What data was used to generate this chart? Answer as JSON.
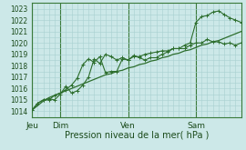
{
  "xlabel": "Pression niveau de la mer( hPa )",
  "bg_color": "#cce8e8",
  "grid_color": "#a8d0d0",
  "line_color": "#2d6e2d",
  "ylim": [
    1013.5,
    1023.5
  ],
  "yticks": [
    1014,
    1015,
    1016,
    1017,
    1018,
    1019,
    1020,
    1021,
    1022,
    1023
  ],
  "day_labels": [
    "Jeu",
    "Dim",
    "Ven",
    "Sam"
  ],
  "day_positions": [
    0,
    30,
    102,
    174
  ],
  "total_hours": 222,
  "series1_x": [
    0,
    6,
    12,
    18,
    24,
    30,
    36,
    42,
    48,
    54,
    60,
    66,
    72,
    78,
    84,
    90,
    96,
    102,
    108,
    114,
    120,
    126,
    132,
    138,
    144,
    150,
    156,
    162,
    168,
    174,
    180,
    186,
    192,
    198,
    204,
    210,
    216,
    222
  ],
  "series1_y": [
    1014.1,
    1014.5,
    1014.9,
    1015.2,
    1015.4,
    1015.6,
    1015.8,
    1016.0,
    1016.2,
    1016.4,
    1016.6,
    1016.8,
    1017.0,
    1017.2,
    1017.3,
    1017.5,
    1017.6,
    1017.8,
    1017.9,
    1018.1,
    1018.2,
    1018.4,
    1018.5,
    1018.7,
    1018.8,
    1019.0,
    1019.1,
    1019.3,
    1019.4,
    1019.6,
    1019.8,
    1019.9,
    1020.1,
    1020.2,
    1020.4,
    1020.6,
    1020.8,
    1021.0
  ],
  "series2_x": [
    0,
    6,
    12,
    18,
    24,
    30,
    36,
    42,
    48,
    54,
    60,
    66,
    72,
    78,
    84,
    90,
    96,
    102,
    108,
    114,
    120,
    126,
    132,
    138,
    144,
    150,
    156,
    162,
    168,
    174,
    180,
    186,
    192,
    198,
    204,
    210,
    216,
    222
  ],
  "series2_y": [
    1014.1,
    1014.7,
    1015.0,
    1015.1,
    1015.0,
    1015.5,
    1016.2,
    1015.6,
    1015.8,
    1016.3,
    1017.0,
    1018.6,
    1018.2,
    1019.0,
    1018.8,
    1018.5,
    1018.7,
    1018.5,
    1018.8,
    1018.8,
    1019.0,
    1019.1,
    1019.2,
    1019.3,
    1019.3,
    1019.5,
    1019.5,
    1019.5,
    1019.8,
    1020.0,
    1020.0,
    1020.3,
    1020.1,
    1020.1,
    1019.9,
    1020.0,
    1019.8,
    1020.0
  ],
  "series3_x": [
    0,
    6,
    12,
    18,
    24,
    30,
    36,
    42,
    48,
    54,
    60,
    66,
    72,
    78,
    84,
    90,
    96,
    102,
    108,
    114,
    120,
    126,
    132,
    138,
    144,
    150,
    156,
    162,
    168,
    174,
    180,
    186,
    192,
    198,
    204,
    210,
    216,
    222
  ],
  "series3_y": [
    1014.1,
    1014.7,
    1015.0,
    1015.0,
    1015.4,
    1015.6,
    1015.9,
    1016.3,
    1016.9,
    1018.1,
    1018.6,
    1018.3,
    1018.8,
    1017.4,
    1017.5,
    1017.5,
    1018.6,
    1018.5,
    1018.9,
    1018.7,
    1018.5,
    1018.7,
    1018.7,
    1019.0,
    1019.2,
    1019.5,
    1019.5,
    1019.8,
    1020.0,
    1021.8,
    1022.3,
    1022.4,
    1022.7,
    1022.8,
    1022.5,
    1022.2,
    1022.0,
    1021.8
  ]
}
